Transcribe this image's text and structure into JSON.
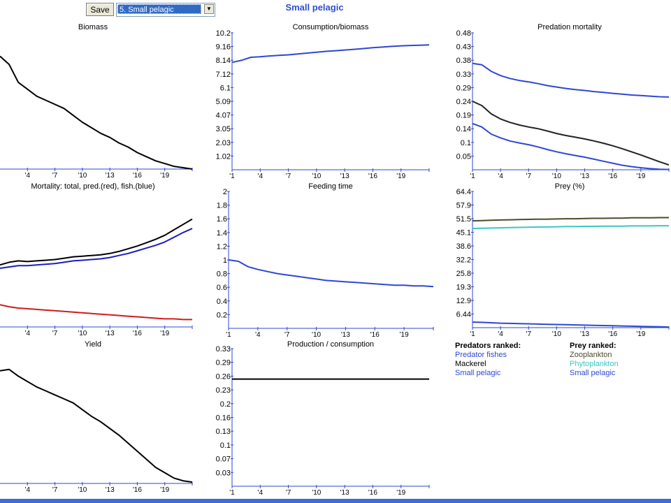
{
  "toolbar": {
    "save_label": "Save",
    "group_select_value": "5. Small pelagic"
  },
  "page_title": "Small pelagic",
  "colors": {
    "blue": "#2e47d6",
    "black": "#000000",
    "red": "#d01c1c",
    "olive": "#4e4a2a",
    "teal": "#3cc7c2",
    "tick": "#2e47d6"
  },
  "chart_data": [
    {
      "id": "biomass",
      "type": "line",
      "title": "Biomass",
      "xticks": [
        "'4",
        "'7",
        "'10",
        "'13",
        "'16",
        "'19"
      ],
      "yticks": [],
      "x": [
        1,
        2,
        3,
        4,
        5,
        6,
        7,
        8,
        9,
        10,
        11,
        12,
        13,
        14,
        15,
        16,
        17,
        18,
        19,
        20,
        21,
        22
      ],
      "ylim": [
        0,
        1
      ],
      "series": [
        {
          "color": "#000000",
          "values": [
            0.82,
            0.76,
            0.63,
            0.58,
            0.53,
            0.5,
            0.47,
            0.44,
            0.39,
            0.34,
            0.3,
            0.26,
            0.23,
            0.19,
            0.16,
            0.12,
            0.09,
            0.06,
            0.04,
            0.02,
            0.01,
            0.0
          ]
        }
      ]
    },
    {
      "id": "consumption_biomass",
      "type": "line",
      "title": "Consumption/biomass",
      "xticks": [
        "'1",
        "'4",
        "'7",
        "'10",
        "'13",
        "'16",
        "'19"
      ],
      "yticks": [
        "10.2",
        "9.16",
        "8.14",
        "7.12",
        "6.1",
        "5.09",
        "4.07",
        "3.05",
        "2.03",
        "1.02"
      ],
      "x": [
        1,
        2,
        3,
        4,
        5,
        6,
        7,
        8,
        9,
        10,
        11,
        12,
        13,
        14,
        15,
        16,
        17,
        18,
        19,
        20,
        21,
        22
      ],
      "ylim": [
        0,
        10.2
      ],
      "series": [
        {
          "color": "#2e47d6",
          "values": [
            8.0,
            8.15,
            8.38,
            8.42,
            8.48,
            8.52,
            8.56,
            8.63,
            8.69,
            8.76,
            8.82,
            8.87,
            8.92,
            8.97,
            9.03,
            9.09,
            9.14,
            9.19,
            9.23,
            9.26,
            9.28,
            9.3
          ]
        }
      ]
    },
    {
      "id": "predation_mortality",
      "type": "line",
      "title": "Predation mortality",
      "xticks": [
        "'1",
        "'4",
        "'7",
        "'10",
        "'13",
        "'16",
        "'19"
      ],
      "yticks": [
        "0.48",
        "0.43",
        "0.38",
        "0.33",
        "0.29",
        "0.24",
        "0.19",
        "0.14",
        "0.1",
        "0.05"
      ],
      "x": [
        1,
        2,
        3,
        4,
        5,
        6,
        7,
        8,
        9,
        10,
        11,
        12,
        13,
        14,
        15,
        16,
        17,
        18,
        19,
        20,
        21,
        22
      ],
      "ylim": [
        0,
        0.48
      ],
      "series": [
        {
          "color": "#2e47d6",
          "values": [
            0.373,
            0.368,
            0.345,
            0.33,
            0.32,
            0.313,
            0.308,
            0.302,
            0.295,
            0.29,
            0.285,
            0.281,
            0.278,
            0.274,
            0.271,
            0.268,
            0.265,
            0.262,
            0.26,
            0.258,
            0.256,
            0.255
          ]
        },
        {
          "color": "#222222",
          "values": [
            0.24,
            0.225,
            0.196,
            0.178,
            0.166,
            0.157,
            0.15,
            0.144,
            0.136,
            0.127,
            0.12,
            0.114,
            0.108,
            0.101,
            0.093,
            0.084,
            0.074,
            0.063,
            0.052,
            0.04,
            0.028,
            0.017
          ]
        },
        {
          "color": "#2e47d6",
          "values": [
            0.162,
            0.15,
            0.125,
            0.112,
            0.101,
            0.094,
            0.088,
            0.08,
            0.071,
            0.063,
            0.056,
            0.05,
            0.044,
            0.037,
            0.03,
            0.023,
            0.016,
            0.011,
            0.007,
            0.004,
            0.002,
            0.001
          ]
        }
      ]
    },
    {
      "id": "mortality",
      "type": "line",
      "title": "Mortality: total, pred.(red), fish.(blue)",
      "xticks": [
        "'4",
        "'7",
        "'10",
        "'13",
        "'16",
        "'19"
      ],
      "yticks": [],
      "x": [
        1,
        2,
        3,
        4,
        5,
        6,
        7,
        8,
        9,
        10,
        11,
        12,
        13,
        14,
        15,
        16,
        17,
        18,
        19,
        20,
        21,
        22
      ],
      "ylim": [
        0,
        2
      ],
      "series": [
        {
          "color": "#000000",
          "values": [
            0.92,
            0.96,
            0.98,
            0.97,
            0.98,
            0.99,
            1.0,
            1.02,
            1.04,
            1.05,
            1.06,
            1.07,
            1.09,
            1.12,
            1.16,
            1.2,
            1.25,
            1.3,
            1.36,
            1.44,
            1.52,
            1.6
          ]
        },
        {
          "color": "#1c1cc8",
          "values": [
            0.87,
            0.89,
            0.91,
            0.91,
            0.92,
            0.93,
            0.94,
            0.96,
            0.98,
            0.99,
            1.0,
            1.01,
            1.03,
            1.06,
            1.09,
            1.13,
            1.17,
            1.21,
            1.26,
            1.33,
            1.4,
            1.46
          ]
        },
        {
          "color": "#d01c1c",
          "values": [
            0.33,
            0.3,
            0.28,
            0.27,
            0.26,
            0.25,
            0.24,
            0.23,
            0.22,
            0.21,
            0.2,
            0.19,
            0.18,
            0.17,
            0.16,
            0.15,
            0.14,
            0.13,
            0.12,
            0.12,
            0.11,
            0.11
          ]
        }
      ]
    },
    {
      "id": "feeding_time",
      "type": "line",
      "title": "Feeding time",
      "xticks": [
        "'1",
        "'4",
        "'7",
        "'10",
        "'13",
        "'16",
        "'19"
      ],
      "yticks": [
        "2",
        "1.8",
        "1.6",
        "1.4",
        "1.2",
        "1",
        "0.8",
        "0.6",
        "0.4",
        "0.2"
      ],
      "x": [
        1,
        2,
        3,
        4,
        5,
        6,
        7,
        8,
        9,
        10,
        11,
        12,
        13,
        14,
        15,
        16,
        17,
        18,
        19,
        20,
        21,
        22
      ],
      "ylim": [
        0,
        2
      ],
      "series": [
        {
          "color": "#2e47d6",
          "values": [
            1.0,
            0.98,
            0.9,
            0.86,
            0.83,
            0.8,
            0.78,
            0.76,
            0.74,
            0.72,
            0.7,
            0.69,
            0.68,
            0.67,
            0.66,
            0.65,
            0.64,
            0.63,
            0.63,
            0.62,
            0.62,
            0.61
          ]
        }
      ]
    },
    {
      "id": "prey_pct",
      "type": "line",
      "title": "Prey (%)",
      "xticks": [
        "'1",
        "'4",
        "'7",
        "'10",
        "'13",
        "'16",
        "'19"
      ],
      "yticks": [
        "64.4",
        "57.9",
        "51.5",
        "45.1",
        "38.6",
        "32.2",
        "25.8",
        "19.3",
        "12.9",
        "6.44"
      ],
      "x": [
        1,
        2,
        3,
        4,
        5,
        6,
        7,
        8,
        9,
        10,
        11,
        12,
        13,
        14,
        15,
        16,
        17,
        18,
        19,
        20,
        21,
        22
      ],
      "ylim": [
        0,
        64.4
      ],
      "series": [
        {
          "color": "#4e4a2a",
          "values": [
            50.5,
            50.6,
            50.8,
            50.9,
            51.0,
            51.1,
            51.2,
            51.3,
            51.3,
            51.4,
            51.5,
            51.5,
            51.6,
            51.7,
            51.7,
            51.8,
            51.8,
            51.9,
            51.9,
            51.9,
            52.0,
            52.0
          ]
        },
        {
          "color": "#3cc7c2",
          "values": [
            46.9,
            47.0,
            47.1,
            47.2,
            47.3,
            47.4,
            47.5,
            47.6,
            47.6,
            47.7,
            47.8,
            47.8,
            47.9,
            47.9,
            48.0,
            48.0,
            48.0,
            48.1,
            48.1,
            48.1,
            48.2,
            48.2
          ]
        },
        {
          "color": "#2e47d6",
          "values": [
            2.6,
            2.5,
            2.3,
            2.1,
            2.0,
            1.9,
            1.8,
            1.7,
            1.6,
            1.5,
            1.4,
            1.3,
            1.2,
            1.1,
            1.0,
            0.9,
            0.8,
            0.7,
            0.6,
            0.5,
            0.4,
            0.3
          ]
        }
      ]
    },
    {
      "id": "yield",
      "type": "line",
      "title": "Yield",
      "xticks": [
        "'4",
        "'7",
        "'10",
        "'13",
        "'16",
        "'19"
      ],
      "yticks": [],
      "x": [
        1,
        2,
        3,
        4,
        5,
        6,
        7,
        8,
        9,
        10,
        11,
        12,
        13,
        14,
        15,
        16,
        17,
        18,
        19,
        20,
        21,
        22
      ],
      "ylim": [
        0,
        1
      ],
      "series": [
        {
          "color": "#000000",
          "values": [
            0.84,
            0.85,
            0.8,
            0.76,
            0.72,
            0.69,
            0.66,
            0.63,
            0.6,
            0.55,
            0.5,
            0.46,
            0.41,
            0.36,
            0.3,
            0.24,
            0.18,
            0.12,
            0.08,
            0.04,
            0.02,
            0.01
          ]
        }
      ]
    },
    {
      "id": "production_consumption",
      "type": "line",
      "title": "Production / consumption",
      "xticks": [
        "'1",
        "'4",
        "'7",
        "'10",
        "'13",
        "'16",
        "'19"
      ],
      "yticks": [
        "0.33",
        "0.29",
        "0.26",
        "0.23",
        "0.2",
        "0.16",
        "0.13",
        "0.1",
        "0.07",
        "0.03"
      ],
      "x": [
        1,
        2,
        3,
        4,
        5,
        6,
        7,
        8,
        9,
        10,
        11,
        12,
        13,
        14,
        15,
        16,
        17,
        18,
        19,
        20,
        21,
        22
      ],
      "ylim": [
        0,
        0.33
      ],
      "series": [
        {
          "color": "#000000",
          "values": [
            0.257,
            0.257,
            0.257,
            0.257,
            0.257,
            0.257,
            0.257,
            0.257,
            0.257,
            0.257,
            0.257,
            0.257,
            0.257,
            0.257,
            0.257,
            0.257,
            0.257,
            0.257,
            0.257,
            0.257,
            0.257,
            0.257
          ]
        }
      ]
    }
  ],
  "predators": {
    "header": "Predators ranked:",
    "items": [
      {
        "label": "Predator fishes",
        "color": "#2e47d6"
      },
      {
        "label": "Mackerel",
        "color": "#000000"
      },
      {
        "label": "Small pelagic",
        "color": "#2e47d6"
      }
    ]
  },
  "prey": {
    "header": "Prey ranked:",
    "items": [
      {
        "label": "Zooplankton",
        "color": "#4e4a2a"
      },
      {
        "label": "Phytoplankton",
        "color": "#3cc7c2"
      },
      {
        "label": "Small pelagic",
        "color": "#2e47d6"
      }
    ]
  }
}
